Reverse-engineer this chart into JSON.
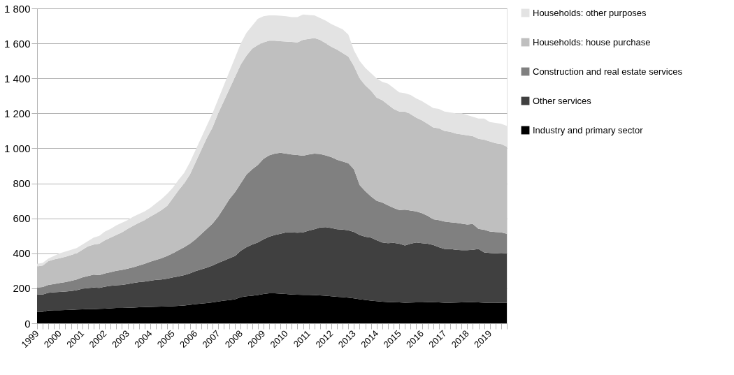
{
  "chart_data": {
    "type": "area",
    "stacked": true,
    "legend": "right",
    "grid": "y",
    "categories": [
      "1999",
      null,
      null,
      null,
      "2000",
      null,
      null,
      null,
      "2001",
      null,
      null,
      null,
      "2002",
      null,
      null,
      null,
      "2003",
      null,
      null,
      null,
      "2004",
      null,
      null,
      null,
      "2005",
      null,
      null,
      null,
      "2006",
      null,
      null,
      null,
      "2007",
      null,
      null,
      null,
      "2008",
      null,
      null,
      null,
      "2009",
      null,
      null,
      null,
      "2010",
      null,
      null,
      null,
      "2011",
      null,
      null,
      null,
      "2012",
      null,
      null,
      null,
      "2013",
      null,
      null,
      null,
      "2014",
      null,
      null,
      null,
      "2015",
      null,
      null,
      null,
      "2016",
      null,
      null,
      null,
      "2017",
      null,
      null,
      null,
      "2018",
      null,
      null,
      null,
      "2019",
      null,
      null,
      null
    ],
    "ylim": [
      0,
      1800
    ],
    "yticks": [
      0,
      200,
      400,
      600,
      800,
      {
        "value": 1000,
        "label": "1 000"
      },
      {
        "value": 1200,
        "label": "1 200"
      },
      {
        "value": 1400,
        "label": "1 400"
      },
      {
        "value": 1600,
        "label": "1 600"
      },
      {
        "value": 1800,
        "label": "1 800"
      }
    ],
    "series": [
      {
        "name": "Industry and primary sector",
        "color": "#000000",
        "values": [
          65,
          66,
          74,
          75,
          75,
          76,
          77,
          79,
          80,
          82,
          81,
          83,
          84,
          86,
          88,
          88,
          89,
          90,
          92,
          93,
          94,
          95,
          96,
          97,
          98,
          100,
          102,
          106,
          110,
          113,
          116,
          120,
          125,
          130,
          133,
          138,
          150,
          155,
          158,
          162,
          168,
          172,
          172,
          170,
          168,
          165,
          164,
          163,
          163,
          162,
          160,
          158,
          155,
          152,
          150,
          147,
          143,
          138,
          134,
          130,
          127,
          124,
          122,
          121,
          120,
          118,
          119,
          120,
          120,
          121,
          121,
          120,
          118,
          118,
          119,
          120,
          121,
          121,
          120,
          118,
          117,
          117,
          118,
          118
        ]
      },
      {
        "name": "Other services",
        "color": "#404040",
        "values": [
          100,
          99,
          101,
          103,
          105,
          106,
          108,
          111,
          118,
          120,
          124,
          120,
          126,
          129,
          130,
          132,
          136,
          140,
          143,
          145,
          149,
          153,
          154,
          158,
          164,
          168,
          173,
          179,
          188,
          195,
          202,
          210,
          220,
          228,
          239,
          247,
          265,
          280,
          292,
          300,
          312,
          323,
          333,
          342,
          352,
          355,
          354,
          357,
          367,
          376,
          388,
          392,
          390,
          386,
          386,
          385,
          379,
          367,
          361,
          360,
          348,
          338,
          336,
          339,
          335,
          327,
          336,
          342,
          338,
          334,
          327,
          315,
          307,
          307,
          301,
          298,
          297,
          299,
          305,
          287,
          285,
          283,
          284,
          282
        ]
      },
      {
        "name": "Construction and real estate services",
        "color": "#808080",
        "values": [
          40,
          43,
          45,
          47,
          50,
          53,
          57,
          60,
          64,
          68,
          73,
          72,
          75,
          77,
          82,
          85,
          87,
          90,
          95,
          102,
          109,
          114,
          122,
          130,
          138,
          150,
          160,
          170,
          182,
          202,
          222,
          240,
          265,
          302,
          338,
          365,
          385,
          415,
          430,
          443,
          460,
          465,
          465,
          463,
          450,
          445,
          444,
          438,
          435,
          432,
          420,
          410,
          405,
          397,
          389,
          383,
          358,
          285,
          260,
          235,
          225,
          228,
          217,
          200,
          193,
          205,
          190,
          178,
          172,
          160,
          147,
          155,
          157,
          153,
          155,
          152,
          147,
          148,
          115,
          130,
          123,
          122,
          118,
          112
        ]
      },
      {
        "name": "Households: house purchase",
        "color": "#bfbfbf",
        "values": [
          120,
          122,
          135,
          140,
          142,
          145,
          148,
          150,
          158,
          170,
          172,
          180,
          190,
          198,
          205,
          215,
          228,
          238,
          245,
          250,
          258,
          266,
          276,
          287,
          315,
          342,
          365,
          395,
          440,
          480,
          520,
          550,
          590,
          610,
          630,
          660,
          680,
          680,
          690,
          685,
          665,
          655,
          645,
          637,
          640,
          643,
          643,
          662,
          660,
          660,
          652,
          640,
          630,
          630,
          620,
          610,
          590,
          610,
          605,
          605,
          590,
          585,
          575,
          565,
          562,
          560,
          550,
          535,
          530,
          525,
          525,
          525,
          518,
          517,
          510,
          510,
          510,
          502,
          515,
          515,
          515,
          508,
          505,
          498
        ]
      },
      {
        "name": "Households: other purposes",
        "color": "#e3e3e3",
        "values": [
          15,
          15,
          15,
          20,
          28,
          30,
          30,
          30,
          30,
          30,
          40,
          45,
          50,
          50,
          55,
          55,
          50,
          52,
          50,
          50,
          50,
          57,
          62,
          68,
          60,
          60,
          60,
          70,
          70,
          70,
          70,
          80,
          80,
          90,
          100,
          110,
          120,
          130,
          130,
          150,
          150,
          145,
          145,
          146,
          145,
          142,
          145,
          145,
          137,
          130,
          125,
          130,
          130,
          130,
          135,
          125,
          90,
          100,
          100,
          100,
          110,
          105,
          120,
          120,
          110,
          105,
          110,
          110,
          110,
          110,
          110,
          110,
          110,
          110,
          115,
          120,
          115,
          110,
          115,
          120,
          110,
          115,
          115,
          118
        ]
      }
    ]
  }
}
